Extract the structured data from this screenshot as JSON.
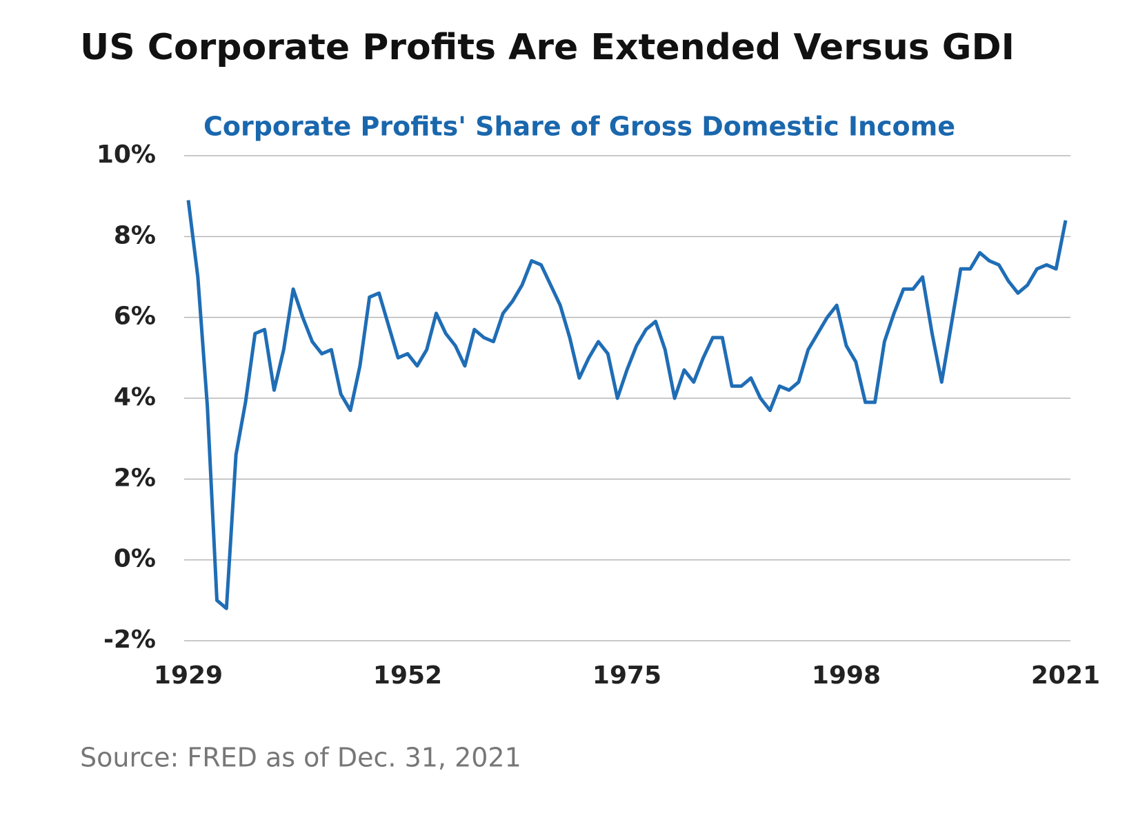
{
  "chart_data": {
    "type": "line",
    "title": "US Corporate Profits Are Extended Versus GDI",
    "subtitle": "Corporate Profits' Share of Gross Domestic Income",
    "source": "Source: FRED as of Dec. 31, 2021",
    "x": [
      1929,
      1930,
      1931,
      1932,
      1933,
      1934,
      1935,
      1936,
      1937,
      1938,
      1939,
      1940,
      1941,
      1942,
      1943,
      1944,
      1945,
      1946,
      1947,
      1948,
      1949,
      1950,
      1951,
      1952,
      1953,
      1954,
      1955,
      1956,
      1957,
      1958,
      1959,
      1960,
      1961,
      1962,
      1963,
      1964,
      1965,
      1966,
      1967,
      1968,
      1969,
      1970,
      1971,
      1972,
      1973,
      1974,
      1975,
      1976,
      1977,
      1978,
      1979,
      1980,
      1981,
      1982,
      1983,
      1984,
      1985,
      1986,
      1987,
      1988,
      1989,
      1990,
      1991,
      1992,
      1993,
      1994,
      1995,
      1996,
      1997,
      1998,
      1999,
      2000,
      2001,
      2002,
      2003,
      2004,
      2005,
      2006,
      2007,
      2008,
      2009,
      2010,
      2011,
      2012,
      2013,
      2014,
      2015,
      2016,
      2017,
      2018,
      2019,
      2020,
      2021
    ],
    "series": [
      {
        "name": "Corporate Profits' Share of GDI",
        "color": "#1f6db5",
        "values": [
          8.9,
          7.0,
          3.8,
          -1.0,
          -1.2,
          2.6,
          3.9,
          5.6,
          5.7,
          4.2,
          5.2,
          6.7,
          6.0,
          5.4,
          5.1,
          5.2,
          4.1,
          3.7,
          4.8,
          6.5,
          6.6,
          5.8,
          5.0,
          5.1,
          4.8,
          5.2,
          6.1,
          5.6,
          5.3,
          4.8,
          5.7,
          5.5,
          5.4,
          6.1,
          6.4,
          6.8,
          7.4,
          7.3,
          6.8,
          6.3,
          5.5,
          4.5,
          5.0,
          5.4,
          5.1,
          4.0,
          4.7,
          5.3,
          5.7,
          5.9,
          5.2,
          4.0,
          4.7,
          4.4,
          5.0,
          5.5,
          5.5,
          4.3,
          4.3,
          4.5,
          4.0,
          3.7,
          4.3,
          4.2,
          4.4,
          5.2,
          5.6,
          6.0,
          6.3,
          5.3,
          4.9,
          3.9,
          3.9,
          5.4,
          6.1,
          6.7,
          6.7,
          7.0,
          5.6,
          4.4,
          5.8,
          7.2,
          7.2,
          7.6,
          7.4,
          7.3,
          6.9,
          6.6,
          6.8,
          7.2,
          7.3,
          7.2,
          8.4
        ]
      }
    ],
    "xlim": [
      1929,
      2021
    ],
    "xticks": [
      1929,
      1952,
      1975,
      1998,
      2021
    ],
    "ylim": [
      -2,
      10
    ],
    "yticks": [
      {
        "value": -2,
        "label": "-2%"
      },
      {
        "value": 0,
        "label": "0%"
      },
      {
        "value": 2,
        "label": "2%"
      },
      {
        "value": 4,
        "label": "4%"
      },
      {
        "value": 6,
        "label": "6%"
      },
      {
        "value": 8,
        "label": "8%"
      },
      {
        "value": 10,
        "label": "10%"
      }
    ],
    "grid": true
  }
}
